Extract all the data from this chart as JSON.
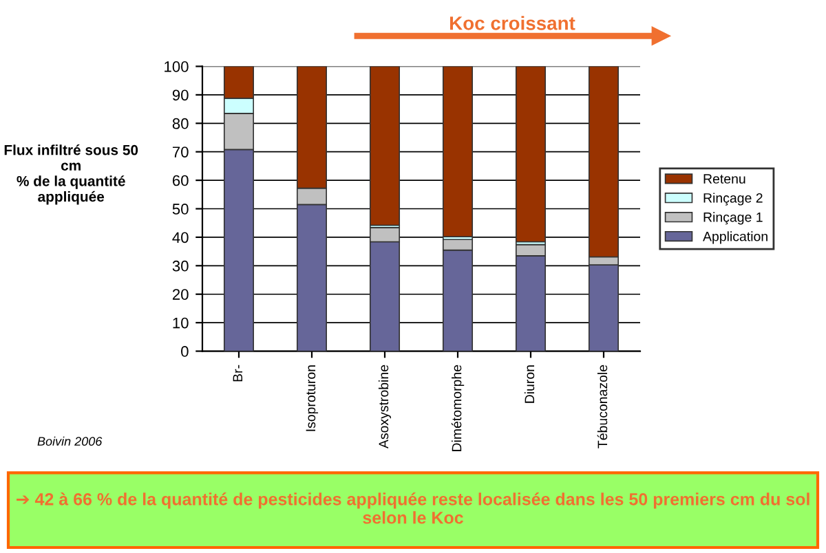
{
  "chart_data": {
    "type": "bar",
    "stacked": true,
    "ylabel": "Flux infiltré sous 50\ncm\n% de la quantité\nappliquée",
    "categories": [
      "Br-",
      "Isoproturon",
      "Asoxystrobine",
      "Dimétomorphe",
      "Diuron",
      "Tébuconazole"
    ],
    "series": [
      {
        "name": "Application",
        "color": "#666699",
        "values": [
          70.8,
          51.5,
          38.4,
          35.5,
          33.5,
          30.3
        ]
      },
      {
        "name": "Rinçage 1",
        "color": "#c0c0c0",
        "values": [
          12.7,
          5.7,
          5.0,
          3.7,
          3.9,
          2.8
        ]
      },
      {
        "name": "Rinçage 2",
        "color": "#ccffff",
        "values": [
          5.3,
          null,
          0.8,
          1.0,
          1.0,
          null
        ]
      },
      {
        "name": "Retenu",
        "color": "#993300",
        "values": [
          11.2,
          42.8,
          55.8,
          59.8,
          61.6,
          66.9
        ]
      }
    ],
    "ylim": [
      0,
      100
    ],
    "yticks": [
      0,
      10,
      20,
      30,
      40,
      50,
      60,
      70,
      80,
      90,
      100
    ],
    "grid": "y",
    "legend": "right",
    "annotations": [
      "Koc croissant",
      "Boivin 2006",
      "➔ 42 à 66 % de la quantité de pesticides appliquée reste localisée dans les 50 premiers cm du sol selon le Koc"
    ]
  }
}
